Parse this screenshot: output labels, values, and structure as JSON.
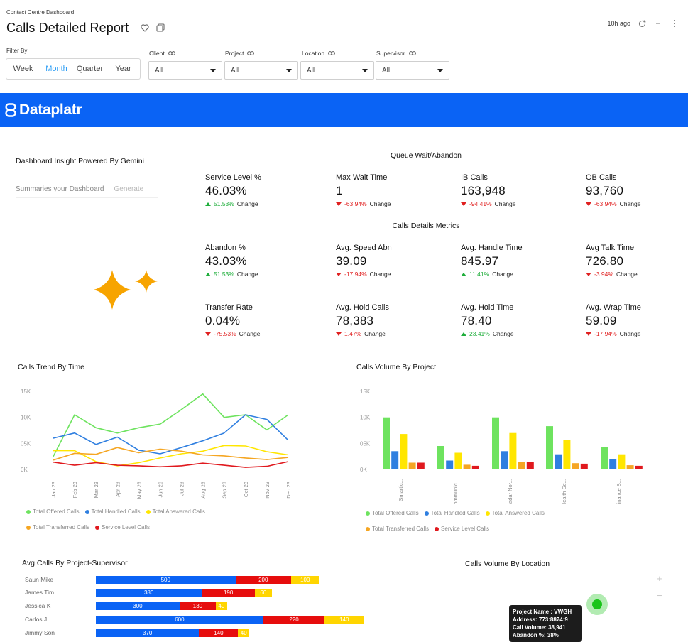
{
  "header": {
    "breadcrumb": "Contact Centre Dashboard",
    "title": "Calls Detailed Report",
    "last_updated": "10h ago"
  },
  "filters": {
    "label": "Filter By",
    "periods": [
      "Week",
      "Month",
      "Quarter",
      "Year"
    ],
    "active_period": "Month",
    "dropdowns": [
      {
        "label": "Client",
        "value": "All"
      },
      {
        "label": "Project",
        "value": "All"
      },
      {
        "label": "Location",
        "value": "All"
      },
      {
        "label": "Supervisor",
        "value": "All"
      }
    ]
  },
  "banner": {
    "brand": "Dataplatr",
    "color": "#0a63f5"
  },
  "insight": {
    "title": "Dashboard Insight Powered By Gemini",
    "placeholder": "Summaries your Dashboard",
    "generate_label": "Generate"
  },
  "kpis": {
    "queue_title": "Queue Wait/Abandon",
    "details_title": "Calls Details Metrics",
    "change_word": "Change",
    "items": [
      {
        "label": "Service Level %",
        "value": "46.03%",
        "change": "51.53%",
        "direction": "up"
      },
      {
        "label": "Max Wait Time",
        "value": "1",
        "change": "-63.94%",
        "direction": "down"
      },
      {
        "label": "IB Calls",
        "value": "163,948",
        "change": "-94.41%",
        "direction": "down"
      },
      {
        "label": "OB Calls",
        "value": "93,760",
        "change": "-63.94%",
        "direction": "down"
      },
      {
        "label": "Abandon %",
        "value": "43.03%",
        "change": "51.53%",
        "direction": "up"
      },
      {
        "label": "Avg. Speed Abn",
        "value": "39.09",
        "change": "-17.94%",
        "direction": "down"
      },
      {
        "label": "Avg. Handle Time",
        "value": "845.97",
        "change": "11.41%",
        "direction": "up"
      },
      {
        "label": "Avg Talk Time",
        "value": "726.80",
        "change": "-3.94%",
        "direction": "down"
      },
      {
        "label": "Transfer Rate",
        "value": "0.04%",
        "change": "-75.53%",
        "direction": "down"
      },
      {
        "label": "Avg. Hold Calls",
        "value": "78,383",
        "change": "1.47%",
        "direction": "down"
      },
      {
        "label": "Avg. Hold Time",
        "value": "78.40",
        "change": "23.41%",
        "direction": "up"
      },
      {
        "label": "Avg.  Wrap Time",
        "value": "59.09",
        "change": "-17.94%",
        "direction": "down"
      }
    ]
  },
  "chart_data": [
    {
      "type": "line",
      "title": "Calls Trend By Time",
      "x": [
        "Jan 23",
        "Feb 23",
        "Mar 23",
        "Apr 23",
        "May 23",
        "Jun 23",
        "Jul 23",
        "Aug 23",
        "Sep 23",
        "Oct 23",
        "Nov 23",
        "Dec 23"
      ],
      "y_ticks": [
        "15K",
        "10K",
        "05K",
        "0K"
      ],
      "ylim": [
        0,
        15000
      ],
      "series": [
        {
          "name": "Total Offered Calls",
          "color": "#6ee35f",
          "values": [
            2500,
            10500,
            8000,
            7000,
            8000,
            8700,
            11500,
            14500,
            10000,
            10500,
            7600,
            10500
          ]
        },
        {
          "name": "Total Handled Calls",
          "color": "#2f7fe0",
          "values": [
            6000,
            7000,
            4800,
            6200,
            3700,
            3000,
            4200,
            5500,
            7000,
            10500,
            9600,
            5600
          ]
        },
        {
          "name": "Total Answered Calls",
          "color": "#ffe600",
          "values": [
            3600,
            3600,
            1500,
            700,
            1300,
            2200,
            3000,
            3500,
            4600,
            4500,
            3400,
            2800
          ]
        },
        {
          "name": "Total Transferred Calls",
          "color": "#f5a623",
          "values": [
            1800,
            3100,
            2900,
            4200,
            3200,
            3900,
            3500,
            2800,
            2600,
            2200,
            1900,
            2300
          ]
        },
        {
          "name": "Service Level Calls",
          "color": "#e0191e",
          "values": [
            1400,
            800,
            1300,
            800,
            700,
            500,
            700,
            1200,
            800,
            400,
            600,
            1500
          ]
        }
      ]
    },
    {
      "type": "bar",
      "title": "Calls Volume By Project",
      "categories": [
        "Smartic...",
        "Communic...",
        "Radar Nor...",
        "Health Se...",
        "Finance B..."
      ],
      "y_ticks": [
        "15K",
        "10K",
        "05K",
        "0K"
      ],
      "ylim": [
        0,
        15000
      ],
      "series": [
        {
          "name": "Total Offered Calls",
          "color": "#6ee35f",
          "values": [
            10000,
            4500,
            10000,
            8300,
            4300
          ]
        },
        {
          "name": "Total Handled Calls",
          "color": "#2f7fe0",
          "values": [
            3500,
            1700,
            3500,
            2900,
            2000
          ]
        },
        {
          "name": "Total Answered Calls",
          "color": "#ffe600",
          "values": [
            6800,
            3200,
            7000,
            5700,
            2900
          ]
        },
        {
          "name": "Total Transferred Calls",
          "color": "#f5a623",
          "values": [
            1300,
            900,
            1400,
            1200,
            800
          ]
        },
        {
          "name": "Service Level Calls",
          "color": "#e0191e",
          "values": [
            1300,
            700,
            1400,
            1100,
            700
          ]
        }
      ]
    },
    {
      "type": "bar",
      "title": "Avg Calls By Project-Supervisor",
      "orientation": "horizontal",
      "stacked": true,
      "categories": [
        "Saun Mike",
        "James Tim",
        "Jessica K",
        "Carlos J",
        "Jimmy Son"
      ],
      "series": [
        {
          "color": "#0a63f5",
          "values": [
            500,
            380,
            300,
            600,
            370
          ]
        },
        {
          "color": "#e60d0d",
          "values": [
            200,
            190,
            130,
            220,
            140
          ]
        },
        {
          "color": "#ffd500",
          "values": [
            100,
            60,
            40,
            140,
            40
          ]
        }
      ]
    }
  ],
  "map": {
    "title": "Calls Volume By Location",
    "zoom_in": "+",
    "zoom_out": "−",
    "tooltip": [
      "Project Name : VWGH",
      "Address: 773:8874:9",
      "Call Volume: 38,941",
      "Abandon %: 38%"
    ]
  }
}
